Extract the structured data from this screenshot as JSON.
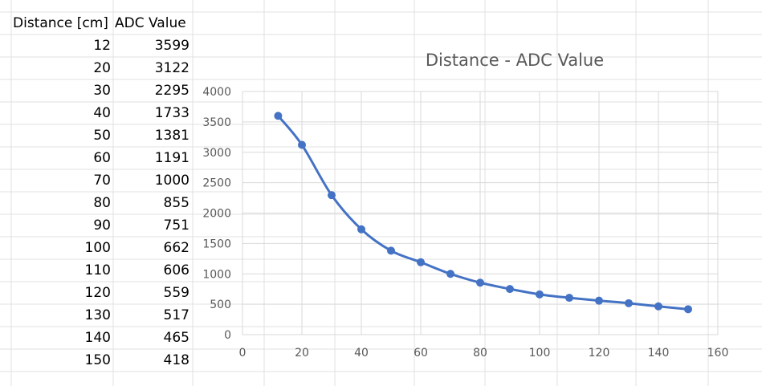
{
  "sheet": {
    "headers": [
      "Distance [cm]",
      "ADC Value"
    ],
    "rows": [
      [
        "12",
        "3599"
      ],
      [
        "20",
        "3122"
      ],
      [
        "30",
        "2295"
      ],
      [
        "40",
        "1733"
      ],
      [
        "50",
        "1381"
      ],
      [
        "60",
        "1191"
      ],
      [
        "70",
        "1000"
      ],
      [
        "80",
        "855"
      ],
      [
        "90",
        "751"
      ],
      [
        "100",
        "662"
      ],
      [
        "110",
        "606"
      ],
      [
        "120",
        "559"
      ],
      [
        "130",
        "517"
      ],
      [
        "140",
        "465"
      ],
      [
        "150",
        "418"
      ]
    ]
  },
  "chart_data": {
    "type": "line",
    "title": "Distance - ADC Value",
    "xlabel": "",
    "ylabel": "",
    "x": [
      12,
      20,
      30,
      40,
      50,
      60,
      70,
      80,
      90,
      100,
      110,
      120,
      130,
      140,
      150
    ],
    "series": [
      {
        "values": [
          3599,
          3122,
          2295,
          1733,
          1381,
          1191,
          1000,
          855,
          751,
          662,
          606,
          559,
          517,
          465,
          418
        ]
      }
    ],
    "xlim": [
      0,
      160
    ],
    "ylim": [
      0,
      4000
    ],
    "xticks": [
      0,
      20,
      40,
      60,
      80,
      100,
      120,
      140,
      160
    ],
    "yticks": [
      0,
      500,
      1000,
      1500,
      2000,
      2500,
      3000,
      3500,
      4000
    ],
    "grid": true,
    "smooth": true,
    "markers": true,
    "legend": "none",
    "colors": {
      "series": "#4472C4",
      "grid": "#D9D9D9",
      "text": "#595959"
    }
  }
}
